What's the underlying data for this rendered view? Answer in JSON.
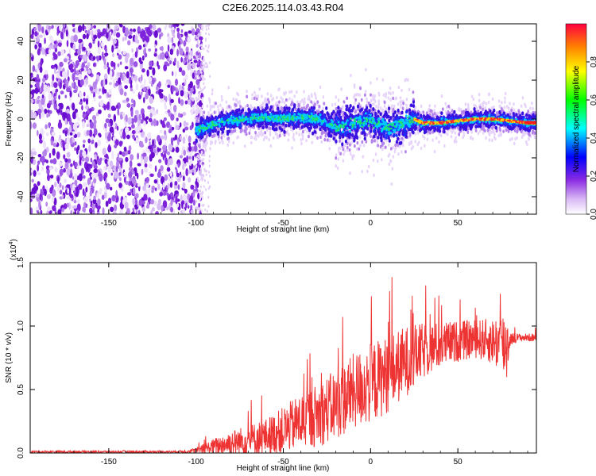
{
  "figure": {
    "title": "C2E6.2025.114.03.43.R04"
  },
  "chart_data": [
    {
      "type": "heatmap",
      "name": "spectrogram",
      "xlabel": "Height of straight line (km)",
      "ylabel": "Frequency (Hz)",
      "xlim": [
        -195,
        95
      ],
      "ylim": [
        -49,
        49
      ],
      "xticks": [
        -150,
        -100,
        -50,
        0,
        50
      ],
      "xtick_labels": [
        "-150",
        "-100",
        "-50",
        "0",
        "50"
      ],
      "yticks": [
        -40,
        -20,
        0,
        20,
        40
      ],
      "ytick_labels": [
        "-40",
        "-20",
        "0",
        "20",
        "40"
      ],
      "noise_region_x": [
        -195,
        -100
      ],
      "signal_region_x": [
        -100,
        95
      ],
      "center_line_freq": [
        [
          -100,
          -6
        ],
        [
          -90,
          -3
        ],
        [
          -80,
          -1
        ],
        [
          -70,
          0
        ],
        [
          -60,
          1
        ],
        [
          -50,
          0
        ],
        [
          -40,
          1
        ],
        [
          -30,
          0
        ],
        [
          -20,
          -4
        ],
        [
          -10,
          -2
        ],
        [
          0,
          -1
        ],
        [
          10,
          -5
        ],
        [
          20,
          -2
        ],
        [
          25,
          0
        ],
        [
          30,
          -2
        ],
        [
          40,
          -2
        ],
        [
          50,
          -1
        ],
        [
          60,
          0
        ],
        [
          70,
          0
        ],
        [
          80,
          -1
        ],
        [
          90,
          -2
        ],
        [
          95,
          -2
        ]
      ],
      "colorbar": {
        "label": "Normalized spectral amplitude",
        "range": [
          0,
          1
        ],
        "ticks": [
          0,
          0.2,
          0.4,
          0.6,
          0.8
        ],
        "tick_labels": [
          "0.0",
          "0.2",
          "0.4",
          "0.6",
          "0.8"
        ],
        "colors": [
          "#ffffff",
          "#8a2be2",
          "#0000ff",
          "#00ffff",
          "#00ff00",
          "#ffff00",
          "#ff0000"
        ]
      },
      "grid": false
    },
    {
      "type": "line",
      "name": "snr",
      "xlabel": "Height of straight line (km)",
      "ylabel": "SNR (10 * v/v)",
      "scale_label": "(x10",
      "scale_exp": "4",
      "scale_close": ")",
      "xlim": [
        -195,
        95
      ],
      "ylim": [
        0,
        1.5
      ],
      "xticks": [
        -150,
        -100,
        -50,
        0,
        50
      ],
      "xtick_labels": [
        "-150",
        "-100",
        "-50",
        "0",
        "50"
      ],
      "yticks": [
        0,
        0.5,
        1.0,
        1.5
      ],
      "ytick_labels": [
        "0.0",
        "0.5",
        "1.0",
        "1.5"
      ],
      "color": "#ee3333",
      "envelope": {
        "x": [
          -195,
          -150,
          -110,
          -100,
          -90,
          -80,
          -70,
          -60,
          -50,
          -40,
          -30,
          -20,
          -10,
          0,
          10,
          20,
          30,
          40,
          50,
          60,
          70,
          78,
          80,
          85,
          95
        ],
        "mean": [
          0.01,
          0.01,
          0.01,
          0.02,
          0.05,
          0.08,
          0.1,
          0.13,
          0.18,
          0.25,
          0.3,
          0.38,
          0.48,
          0.55,
          0.62,
          0.72,
          0.8,
          0.85,
          0.88,
          0.9,
          0.88,
          0.85,
          0.9,
          0.91,
          0.91
        ],
        "spread": [
          0.01,
          0.01,
          0.01,
          0.02,
          0.06,
          0.1,
          0.12,
          0.14,
          0.18,
          0.22,
          0.25,
          0.28,
          0.3,
          0.32,
          0.3,
          0.28,
          0.22,
          0.18,
          0.16,
          0.15,
          0.18,
          0.3,
          0.05,
          0.03,
          0.03
        ]
      },
      "grid": false
    }
  ]
}
